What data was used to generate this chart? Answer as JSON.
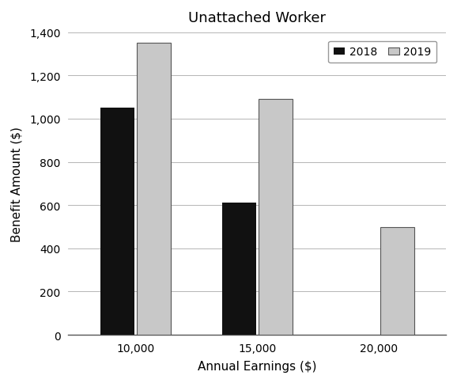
{
  "title": "Unattached Worker",
  "xlabel": "Annual Earnings ($)",
  "ylabel": "Benefit Amount ($)",
  "categories": [
    "10,000",
    "15,000",
    "20,000"
  ],
  "values_2018": [
    1050,
    610,
    0
  ],
  "values_2019": [
    1350,
    1090,
    500
  ],
  "color_2018": "#111111",
  "color_2019": "#c8c8c8",
  "color_2019_edge": "#555555",
  "ylim": [
    0,
    1400
  ],
  "yticks": [
    0,
    200,
    400,
    600,
    800,
    1000,
    1200,
    1400
  ],
  "legend_labels": [
    "2018",
    "2019"
  ],
  "bar_width": 0.28,
  "title_fontsize": 13,
  "label_fontsize": 11,
  "tick_fontsize": 10
}
